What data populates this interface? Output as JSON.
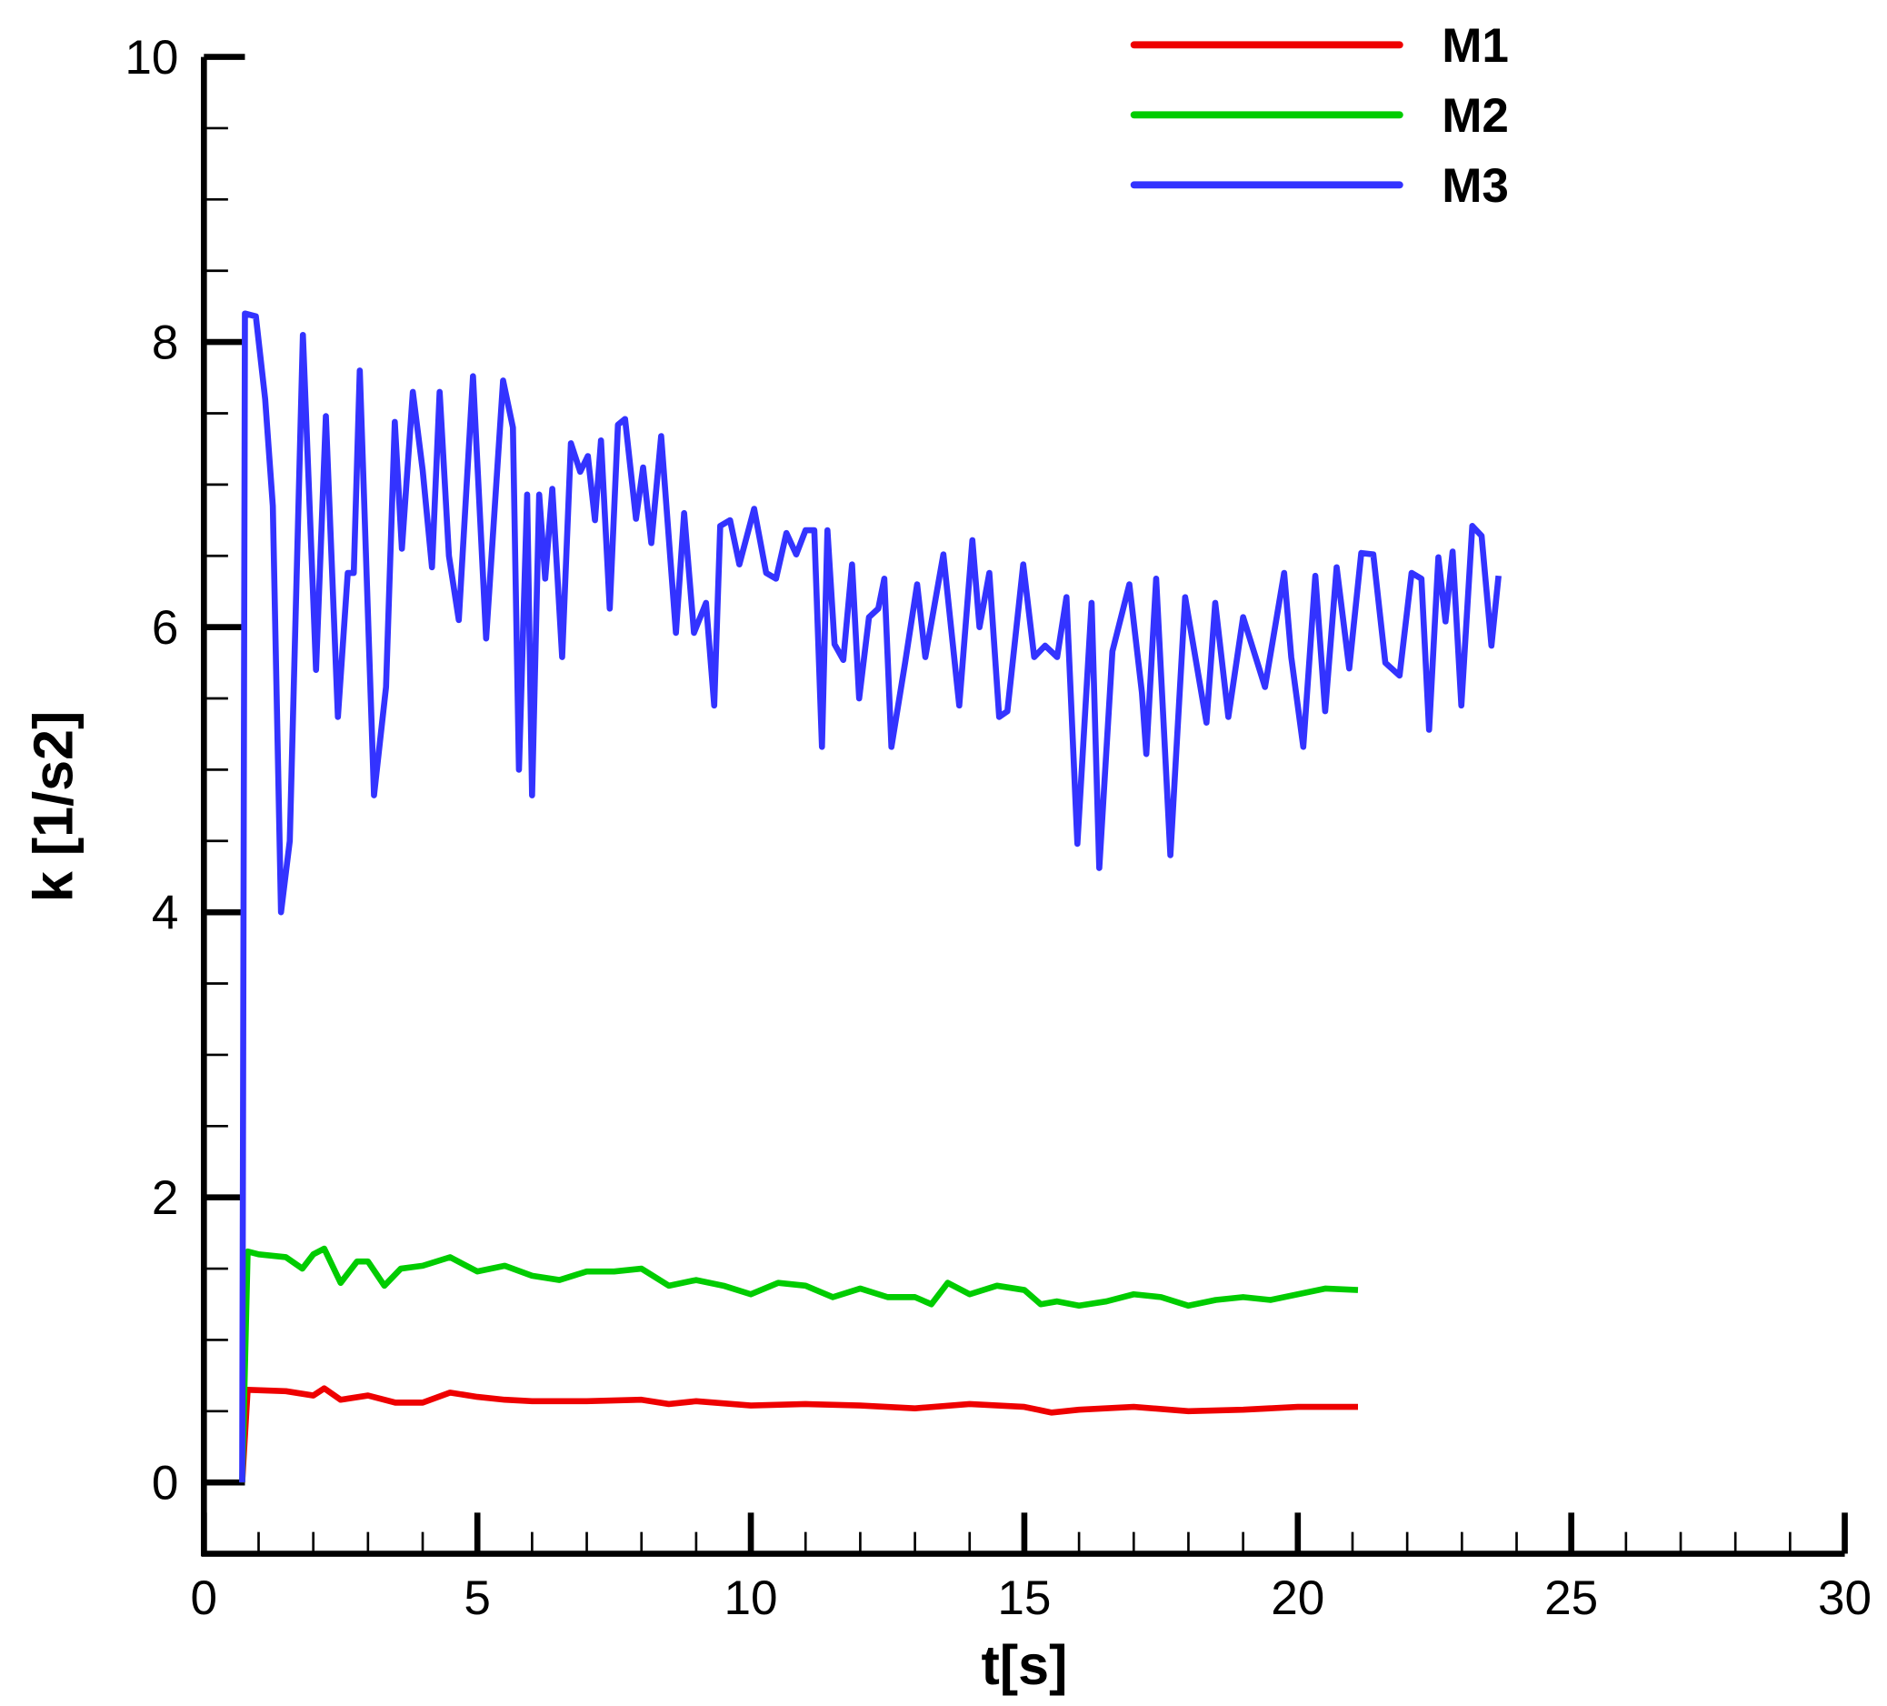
{
  "chart_data": {
    "type": "line",
    "x_label": "t[s]",
    "y_label": "k [1/s2]",
    "xlim": [
      0,
      30
    ],
    "xticks": [
      0,
      5,
      10,
      15,
      20,
      25,
      30
    ],
    "ylim": [
      -0.5,
      10
    ],
    "yticks": [
      0,
      2,
      4,
      6,
      8,
      10
    ],
    "legend": "upper right",
    "series": [
      {
        "name": "M1",
        "color": "#ee0000",
        "x": [
          0.7,
          0.8,
          1.5,
          2.0,
          2.2,
          2.5,
          3.0,
          3.5,
          4.0,
          4.5,
          5.0,
          5.5,
          6.0,
          7.0,
          8.0,
          8.5,
          9.0,
          10.0,
          11.0,
          12.0,
          13.0,
          14.0,
          15.0,
          15.5,
          16.0,
          17.0,
          18.0,
          19.0,
          20.0,
          21.1
        ],
        "values": [
          0,
          0.65,
          0.64,
          0.61,
          0.66,
          0.58,
          0.61,
          0.56,
          0.56,
          0.63,
          0.6,
          0.58,
          0.57,
          0.57,
          0.58,
          0.55,
          0.57,
          0.54,
          0.55,
          0.54,
          0.52,
          0.55,
          0.53,
          0.49,
          0.51,
          0.53,
          0.5,
          0.51,
          0.53,
          0.53
        ]
      },
      {
        "name": "M2",
        "color": "#00cc00",
        "x": [
          0.7,
          0.8,
          1.0,
          1.5,
          1.8,
          2.0,
          2.2,
          2.5,
          2.8,
          3.0,
          3.3,
          3.6,
          4.0,
          4.5,
          5.0,
          5.5,
          6.0,
          6.5,
          7.0,
          7.5,
          8.0,
          8.5,
          9.0,
          9.5,
          10.0,
          10.5,
          11.0,
          11.5,
          12.0,
          12.5,
          13.0,
          13.3,
          13.6,
          14.0,
          14.5,
          15.0,
          15.3,
          15.6,
          16.0,
          16.5,
          17.0,
          17.5,
          18.0,
          18.5,
          19.0,
          19.5,
          20.0,
          20.5,
          21.1
        ],
        "values": [
          0,
          1.62,
          1.6,
          1.58,
          1.5,
          1.6,
          1.64,
          1.4,
          1.55,
          1.55,
          1.38,
          1.5,
          1.52,
          1.58,
          1.48,
          1.52,
          1.45,
          1.42,
          1.48,
          1.48,
          1.5,
          1.38,
          1.42,
          1.38,
          1.32,
          1.4,
          1.38,
          1.3,
          1.36,
          1.3,
          1.3,
          1.25,
          1.4,
          1.32,
          1.38,
          1.35,
          1.25,
          1.27,
          1.24,
          1.27,
          1.32,
          1.3,
          1.24,
          1.28,
          1.3,
          1.28,
          1.32,
          1.36,
          1.35
        ]
      },
      {
        "name": "M3",
        "color": "#3333ff",
        "x": [
          0.7,
          0.75,
          0.95,
          1.12,
          1.26,
          1.41,
          1.57,
          1.81,
          2.05,
          2.23,
          2.45,
          2.63,
          2.74,
          2.85,
          3.11,
          3.33,
          3.49,
          3.62,
          3.82,
          4.0,
          4.17,
          4.31,
          4.48,
          4.66,
          4.92,
          5.16,
          5.47,
          5.65,
          5.76,
          5.91,
          6.0,
          6.13,
          6.24,
          6.37,
          6.55,
          6.71,
          6.88,
          7.02,
          7.15,
          7.26,
          7.42,
          7.57,
          7.7,
          7.9,
          8.03,
          8.18,
          8.36,
          8.63,
          8.78,
          8.96,
          9.18,
          9.33,
          9.44,
          9.62,
          9.79,
          10.06,
          10.28,
          10.46,
          10.65,
          10.83,
          11.0,
          11.16,
          11.3,
          11.4,
          11.53,
          11.69,
          11.85,
          11.98,
          12.16,
          12.33,
          12.44,
          12.57,
          12.82,
          13.04,
          13.19,
          13.52,
          13.81,
          14.05,
          14.18,
          14.36,
          14.54,
          14.69,
          14.98,
          15.18,
          15.38,
          15.6,
          15.77,
          15.97,
          16.23,
          16.37,
          16.61,
          16.92,
          17.15,
          17.23,
          17.41,
          17.67,
          17.94,
          18.33,
          18.49,
          18.73,
          19.0,
          19.4,
          19.75,
          19.88,
          20.1,
          20.32,
          20.5,
          20.71,
          20.94,
          21.16,
          21.38,
          21.6,
          21.86,
          22.08,
          22.26,
          22.4,
          22.57,
          22.7,
          22.83,
          22.99,
          23.19,
          23.36,
          23.54,
          23.67
        ],
        "values": [
          0,
          8.2,
          8.18,
          7.6,
          6.85,
          4.0,
          4.5,
          8.05,
          5.7,
          7.48,
          5.37,
          6.38,
          6.38,
          7.8,
          4.82,
          5.58,
          7.44,
          6.55,
          7.65,
          7.1,
          6.42,
          7.65,
          6.5,
          6.05,
          7.76,
          5.92,
          7.73,
          7.4,
          5.0,
          6.93,
          4.82,
          6.93,
          6.34,
          6.97,
          5.79,
          7.29,
          7.09,
          7.2,
          6.75,
          7.31,
          6.13,
          7.42,
          7.46,
          6.76,
          7.12,
          6.59,
          7.34,
          5.96,
          6.8,
          5.96,
          6.17,
          5.45,
          6.71,
          6.75,
          6.44,
          6.83,
          6.38,
          6.34,
          6.66,
          6.51,
          6.68,
          6.68,
          5.16,
          6.68,
          5.88,
          5.77,
          6.44,
          5.5,
          6.07,
          6.13,
          6.34,
          5.16,
          5.75,
          6.3,
          5.79,
          6.51,
          5.45,
          6.61,
          6.0,
          6.38,
          5.37,
          5.41,
          6.44,
          5.79,
          5.87,
          5.79,
          6.21,
          4.48,
          6.17,
          4.31,
          5.83,
          6.3,
          5.54,
          5.11,
          6.34,
          4.4,
          6.21,
          5.33,
          6.17,
          5.37,
          6.07,
          5.58,
          6.38,
          5.79,
          5.16,
          6.36,
          5.41,
          6.42,
          5.71,
          6.52,
          6.51,
          5.75,
          5.66,
          6.38,
          6.34,
          5.28,
          6.49,
          6.04,
          6.53,
          5.45,
          6.71,
          6.64,
          5.87,
          6.36
        ]
      }
    ]
  }
}
